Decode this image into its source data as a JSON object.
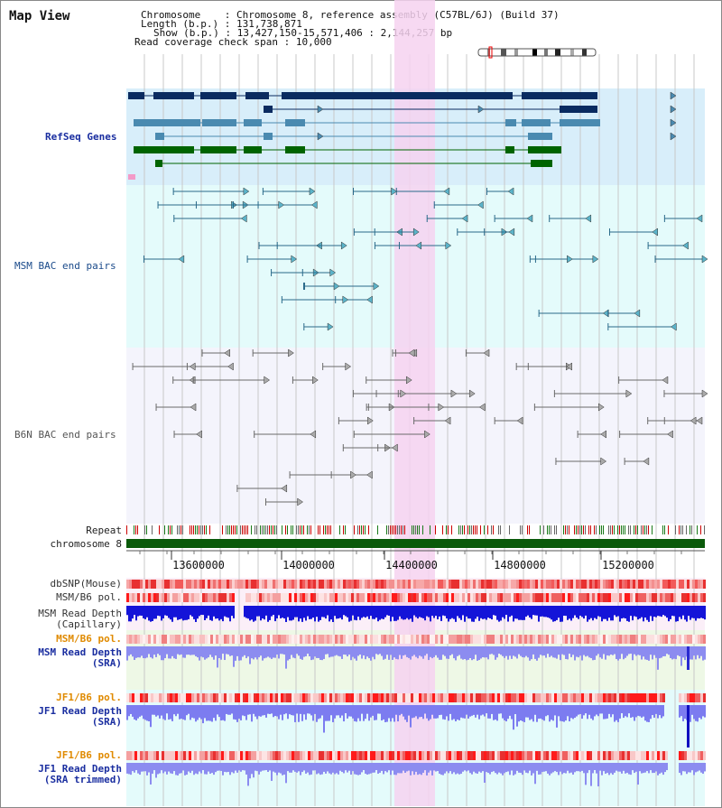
{
  "title": "Map View",
  "info": {
    "chromosome_label": "Chromosome",
    "chromosome_value": "Chromosome 8, reference assembly (C57BL/6J) (Build 37)",
    "length_label": "Length (b.p.)",
    "length_value": "131,738,871",
    "show_label": "Show (b.p.)",
    "show_value": "13,427,150-15,571,406 : 2,144,257 bp",
    "span_label": "Read coverage check span",
    "span_value": "10,000"
  },
  "tracks": {
    "refseq": "RefSeq Genes",
    "msm_bac": "MSM BAC end pairs",
    "b6n_bac": "B6N BAC end pairs",
    "repeat": "Repeat",
    "chromosome": "chromosome 8",
    "dbsnp": "dbSNP(Mouse)",
    "msm_b6_pol": "MSM/B6 pol.",
    "msm_depth_cap_1": "MSM Read Depth",
    "msm_depth_cap_2": "(Capillary)",
    "msm_b6_pol_sra": "MSM/B6 pol.",
    "msm_depth_sra_1": "MSM Read Depth",
    "msm_depth_sra_2": "(SRA)",
    "jf1_b6_pol": "JF1/B6 pol.",
    "jf1_depth_sra_1": "JF1 Read Depth",
    "jf1_depth_sra_2": "(SRA)",
    "jf1_b6_pol_trim": "JF1/B6 pol.",
    "jf1_depth_trim_1": "JF1 Read Depth",
    "jf1_depth_trim_2": "(SRA trimmed)"
  },
  "axis": {
    "ticks": [
      "13600000",
      "14000000",
      "14400000",
      "14800000",
      "15200000"
    ]
  },
  "colors": {
    "refseq_bg": "#d8eefa",
    "msm_bg": "#e4fbfb",
    "b6n_bg": "#f4f4fc",
    "highlight": "#f6d2f0",
    "gene_navy": "#0a2b60",
    "gene_teal": "#4a8ab0",
    "gene_green": "#006400",
    "bac_teal": "#2a6a8a",
    "bac_gray": "#6a6a6a",
    "chrom_green": "#0a5a0a",
    "label_blue": "#1a2ea0",
    "label_orange": "#e08a00"
  }
}
